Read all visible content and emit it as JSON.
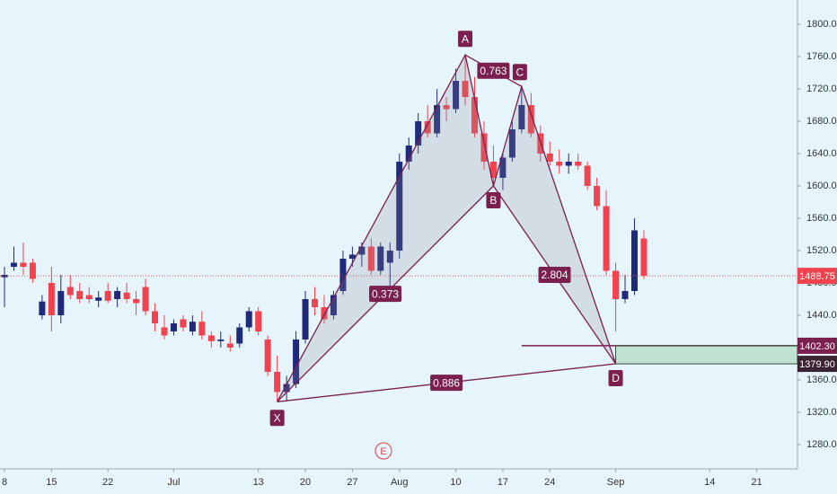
{
  "chart_data": {
    "type": "candlestick",
    "categories": [
      "8",
      null,
      null,
      null,
      null,
      "15",
      null,
      null,
      null,
      null,
      null,
      "22",
      null,
      null,
      null,
      null,
      null,
      null,
      "Jul",
      null,
      null,
      null,
      null,
      null,
      null,
      null,
      null,
      "13",
      null,
      null,
      null,
      null,
      "20",
      null,
      null,
      null,
      null,
      "27",
      null,
      null,
      null,
      null,
      "Aug",
      null,
      null,
      null,
      null,
      null,
      "10",
      null,
      null,
      null,
      null,
      "17",
      null,
      null,
      null,
      null,
      "24",
      null,
      null,
      null,
      null,
      null,
      null,
      "Sep",
      null,
      null,
      null,
      null,
      null,
      null,
      null,
      null,
      null,
      "14",
      null,
      null,
      null,
      null,
      "21"
    ],
    "open": [
      1487,
      1500,
      1505,
      1505,
      1440,
      1480,
      1440,
      1475,
      1470,
      1465,
      1458,
      1470,
      1460,
      1468,
      1460,
      1475,
      1445,
      1425,
      1420,
      1435,
      1420,
      1432,
      1415,
      1408,
      1405,
      1405,
      1425,
      1445,
      1410,
      1370,
      1345,
      1355,
      1410,
      1460,
      1450,
      1440,
      1470,
      1510,
      1515,
      1525,
      1495,
      1505,
      1520,
      1630,
      1650,
      1680,
      1665,
      1700,
      1695,
      1730,
      1710,
      1665,
      1630,
      1610,
      1635,
      1670,
      1700,
      1665,
      1640,
      1630,
      1625,
      1630,
      1625,
      1600,
      1575,
      1495,
      1460,
      1470,
      1535,
      null,
      null,
      null,
      null,
      null,
      null,
      null,
      null,
      null,
      null,
      null,
      null
    ],
    "high": [
      1500,
      1525,
      1530,
      1510,
      1465,
      1500,
      1490,
      1490,
      1480,
      1475,
      1470,
      1480,
      1475,
      1480,
      1470,
      1485,
      1455,
      1440,
      1435,
      1440,
      1440,
      1445,
      1420,
      1420,
      1415,
      1430,
      1450,
      1450,
      1415,
      1390,
      1365,
      1420,
      1470,
      1475,
      1465,
      1470,
      1520,
      1525,
      1530,
      1535,
      1530,
      1530,
      1640,
      1660,
      1690,
      1700,
      1720,
      1710,
      1745,
      1762,
      1735,
      1680,
      1650,
      1640,
      1680,
      1723,
      1715,
      1675,
      1655,
      1645,
      1640,
      1640,
      1630,
      1610,
      1595,
      1505,
      1490,
      1560,
      1545,
      null,
      null,
      null,
      null,
      null,
      null,
      null,
      null,
      null,
      null,
      null,
      null
    ],
    "low": [
      1450,
      1495,
      1490,
      1480,
      1435,
      1420,
      1430,
      1460,
      1455,
      1455,
      1450,
      1455,
      1450,
      1455,
      1440,
      1440,
      1420,
      1410,
      1415,
      1420,
      1415,
      1410,
      1400,
      1400,
      1395,
      1400,
      1420,
      1415,
      1365,
      1333,
      1335,
      1350,
      1405,
      1440,
      1430,
      1435,
      1465,
      1500,
      1500,
      1490,
      1490,
      1470,
      1510,
      1620,
      1640,
      1660,
      1660,
      1680,
      1690,
      1700,
      1660,
      1620,
      1600,
      1595,
      1630,
      1665,
      1660,
      1630,
      1625,
      1615,
      1615,
      1620,
      1595,
      1570,
      1490,
      1420,
      1455,
      1465,
      1485,
      null,
      null,
      null,
      null,
      null,
      null,
      null,
      null,
      null,
      null,
      null,
      null
    ],
    "close": [
      1490,
      1505,
      1500,
      1485,
      1457,
      1440,
      1470,
      1465,
      1460,
      1460,
      1462,
      1458,
      1470,
      1460,
      1455,
      1445,
      1430,
      1415,
      1430,
      1425,
      1432,
      1415,
      1408,
      1410,
      1400,
      1425,
      1445,
      1420,
      1370,
      1345,
      1355,
      1410,
      1460,
      1450,
      1435,
      1465,
      1510,
      1515,
      1525,
      1495,
      1525,
      1520,
      1630,
      1650,
      1680,
      1665,
      1700,
      1695,
      1730,
      1710,
      1665,
      1630,
      1610,
      1635,
      1670,
      1700,
      1665,
      1640,
      1630,
      1625,
      1630,
      1625,
      1600,
      1575,
      1495,
      1460,
      1470,
      1545,
      1488.75,
      null,
      null,
      null,
      null,
      null,
      null,
      null,
      null,
      null,
      null,
      null,
      null
    ],
    "up_color": "#1f2a7a",
    "down_color": "#f0434f",
    "ylim": [
      1250,
      1830
    ],
    "yticks": [
      {
        "value": 1280,
        "label": "1280.00"
      },
      {
        "value": 1320,
        "label": "1320.00"
      },
      {
        "value": 1360,
        "label": "1360.00"
      },
      {
        "value": 1400,
        "label": "1400.00"
      },
      {
        "value": 1440,
        "label": "1440.00"
      },
      {
        "value": 1480,
        "label": "1480.00"
      },
      {
        "value": 1520,
        "label": "1520.00"
      },
      {
        "value": 1560,
        "label": "1560.00"
      },
      {
        "value": 1600,
        "label": "1600.00"
      },
      {
        "value": 1640,
        "label": "1640.00"
      },
      {
        "value": 1680,
        "label": "1680.00"
      },
      {
        "value": 1720,
        "label": "1720.00"
      },
      {
        "value": 1760,
        "label": "1760.00"
      },
      {
        "value": 1800,
        "label": "1800.00"
      }
    ],
    "last_price": 1488.75,
    "zone": [
      {
        "value": 1402.3,
        "label": "1402.30"
      },
      {
        "value": 1379.9,
        "label": "1379.90"
      }
    ],
    "pattern": {
      "color": "#7a1f4e",
      "points": [
        {
          "label": "X",
          "x": 29,
          "value": 1333
        },
        {
          "label": "A",
          "x": 49,
          "value": 1762
        },
        {
          "label": "B",
          "x": 52,
          "value": 1600
        },
        {
          "label": "C",
          "x": 55,
          "value": 1723
        },
        {
          "label": "D",
          "x": 65,
          "value": 1380
        }
      ],
      "ratios": [
        "0.373",
        "0.763",
        "2.804",
        "0.886"
      ]
    },
    "event_marker": "E"
  }
}
